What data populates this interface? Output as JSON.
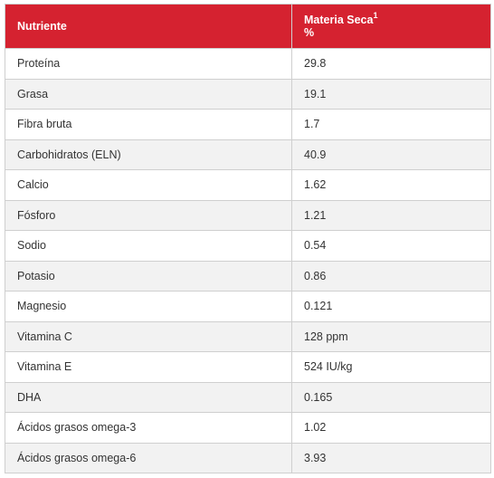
{
  "table": {
    "header": {
      "nutrient": "Nutriente",
      "dry_matter_line1": "Materia Seca",
      "dry_matter_sup": "1",
      "dry_matter_line2": "%"
    },
    "rows": [
      {
        "nutrient": "Proteína",
        "value": "29.8"
      },
      {
        "nutrient": "Grasa",
        "value": "19.1"
      },
      {
        "nutrient": "Fibra bruta",
        "value": "1.7"
      },
      {
        "nutrient": "Carbohidratos (ELN)",
        "value": "40.9"
      },
      {
        "nutrient": "Calcio",
        "value": "1.62"
      },
      {
        "nutrient": "Fósforo",
        "value": "1.21"
      },
      {
        "nutrient": "Sodio",
        "value": "0.54"
      },
      {
        "nutrient": "Potasio",
        "value": "0.86"
      },
      {
        "nutrient": "Magnesio",
        "value": "0.121"
      },
      {
        "nutrient": "Vitamina C",
        "value": "128 ppm"
      },
      {
        "nutrient": "Vitamina E",
        "value": "524 IU/kg"
      },
      {
        "nutrient": "DHA",
        "value": "0.165"
      },
      {
        "nutrient": "Ácidos grasos omega-3",
        "value": "1.02"
      },
      {
        "nutrient": "Ácidos grasos omega-6",
        "value": "3.93"
      }
    ]
  },
  "colors": {
    "header_bg": "#d52230",
    "header_text": "#ffffff",
    "row_alt_bg": "#f2f2f2",
    "border": "#cfcfcf"
  }
}
